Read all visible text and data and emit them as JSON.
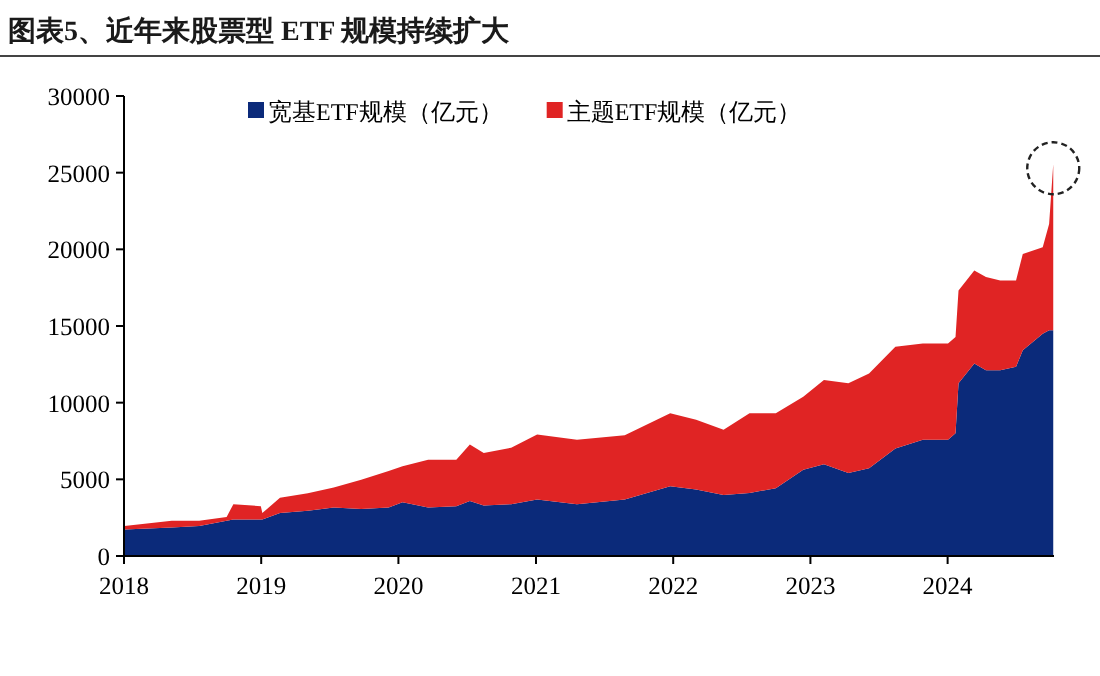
{
  "chart_data": {
    "type": "area",
    "stacked": true,
    "title": "图表5、近年来股票型 ETF 规模持续扩大",
    "x": [
      "2018-01-02",
      "2018-05-08",
      "2018-07-20",
      "2018-10-01",
      "2018-10-19",
      "2018-12-31",
      "2019-01-04",
      "2019-02-20",
      "2019-05-05",
      "2019-07-13",
      "2019-09-24",
      "2019-12-06",
      "2020-01-12",
      "2020-03-20",
      "2020-06-03",
      "2020-07-09",
      "2020-08-15",
      "2020-10-27",
      "2021-01-04",
      "2021-04-20",
      "2021-08-25",
      "2021-12-24",
      "2022-03-03",
      "2022-05-15",
      "2022-07-23",
      "2022-10-01",
      "2022-12-13",
      "2023-02-06",
      "2023-04-12",
      "2023-06-06",
      "2023-08-15",
      "2023-10-27",
      "2024-01-02",
      "2024-01-22",
      "2024-01-30",
      "2024-03-12",
      "2024-04-12",
      "2024-05-20",
      "2024-07-01",
      "2024-07-19",
      "2024-09-10",
      "2024-09-27",
      "2024-10-08"
    ],
    "series": [
      {
        "name": "宽基ETF规模（亿元）",
        "color": "#0b2a7a",
        "values": [
          1730,
          1860,
          1950,
          2300,
          2380,
          2380,
          2380,
          2800,
          2950,
          3160,
          3070,
          3160,
          3500,
          3160,
          3250,
          3590,
          3290,
          3380,
          3680,
          3380,
          3680,
          4550,
          4330,
          3980,
          4110,
          4420,
          5630,
          5980,
          5410,
          5720,
          7010,
          7580,
          7580,
          8010,
          11260,
          12550,
          12120,
          12120,
          12340,
          13420,
          14500,
          14720,
          14720
        ]
      },
      {
        "name": "主题ETF规模（亿元）",
        "color": "#e02424",
        "values": [
          220,
          440,
          350,
          250,
          1000,
          870,
          420,
          1000,
          1150,
          1300,
          1910,
          2380,
          2350,
          3120,
          3030,
          3680,
          3420,
          3680,
          4240,
          4200,
          4200,
          4760,
          4550,
          4250,
          5200,
          4890,
          4760,
          5490,
          5850,
          6190,
          6630,
          6280,
          6280,
          6280,
          6060,
          6070,
          6070,
          5850,
          5630,
          6280,
          5640,
          6930,
          10830
        ]
      }
    ],
    "xlim": [
      "2018-01-01",
      "2024-10-10"
    ],
    "xticks": [
      "2018",
      "2019",
      "2020",
      "2021",
      "2022",
      "2023",
      "2024"
    ],
    "ylim": [
      0,
      30000
    ],
    "yticks": [
      0,
      5000,
      10000,
      15000,
      20000,
      25000,
      30000
    ],
    "legend": "top",
    "grid": false
  }
}
